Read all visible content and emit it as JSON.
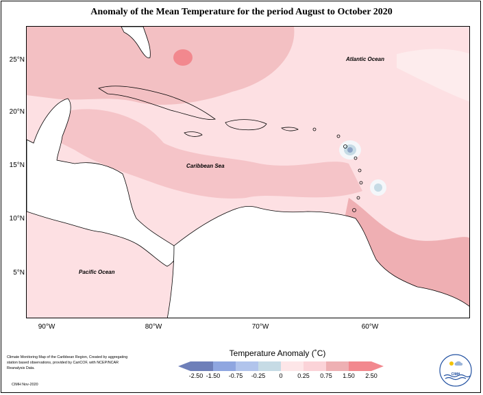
{
  "title": "Anomaly of the Mean Temperature for the period August to October 2020",
  "map": {
    "lat_labels": [
      "25°N",
      "20°N",
      "15°N",
      "10°N",
      "5°N"
    ],
    "lon_labels": [
      "90°W",
      "80°W",
      "70°W",
      "60°W"
    ],
    "ocean_labels": {
      "atlantic": "Atlantic Ocean",
      "caribbean": "Caribbean Sea",
      "pacific": "Pacific Ocean"
    }
  },
  "legend": {
    "title": "Temperature Anomaly (˚C)",
    "ticks": [
      "-2.50",
      "-1.50",
      "-0.75",
      "-0.25",
      "0",
      "0.25",
      "0.75",
      "1.50",
      "2.50"
    ],
    "colors": [
      "#6e7fb9",
      "#8fa6e0",
      "#b1c4ec",
      "#c6dbe5",
      "#fde6e8",
      "#fbd3d8",
      "#eeb0b3",
      "#f2888e"
    ]
  },
  "credit": {
    "text": "Climate Monitoring Map of the Caribbean Region, Created by aggregating station based observations, provided by CariCOF, with NCEP/NCAR Reanalysis Data.",
    "date": "CIMH Nov-2020",
    "logo_text": "CIMH"
  }
}
